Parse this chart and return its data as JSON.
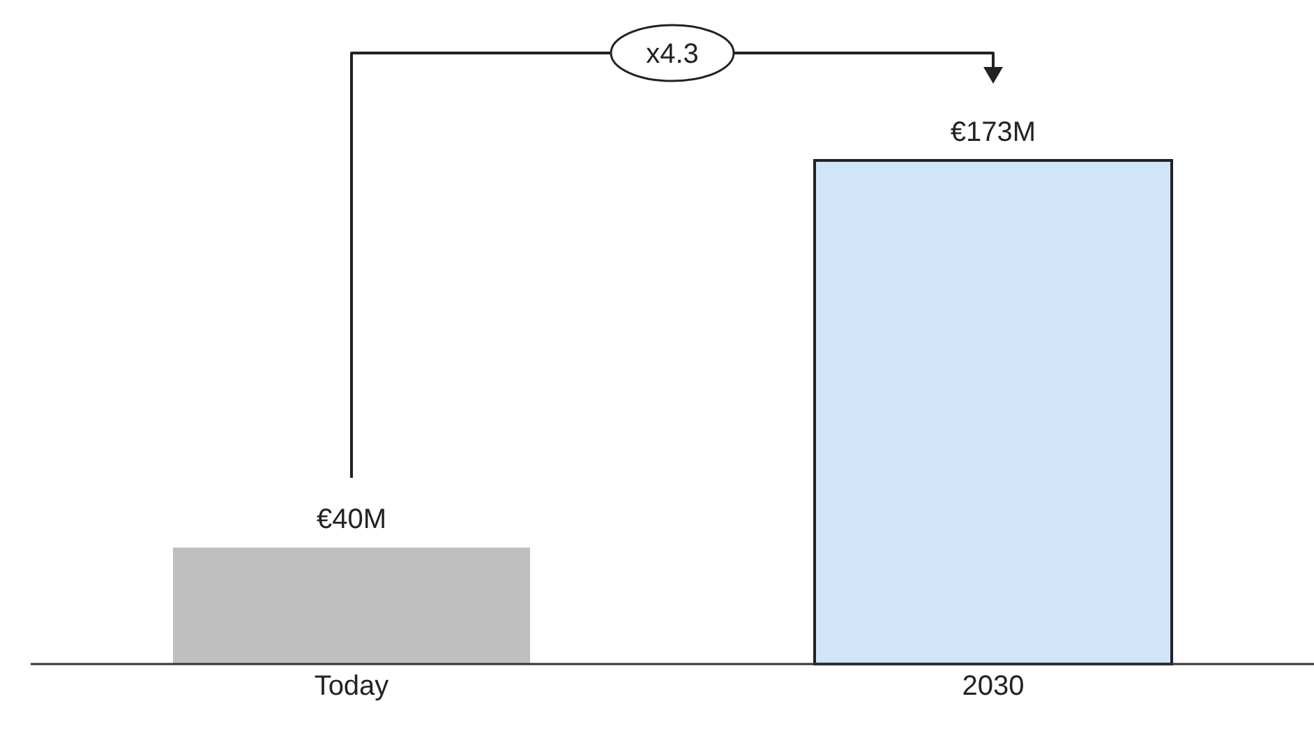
{
  "chart_data": {
    "type": "bar",
    "categories": [
      "Today",
      "2030"
    ],
    "values": [
      40,
      173
    ],
    "colors": [
      "#bfbfbf",
      "#d0e5f8"
    ],
    "value_labels": [
      "€40M",
      "€173M"
    ],
    "annotations": [
      "x4.3"
    ]
  }
}
